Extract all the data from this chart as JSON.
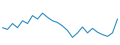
{
  "values": [
    1.0,
    0.5,
    2.2,
    1.0,
    3.0,
    2.2,
    4.5,
    3.5,
    5.2,
    4.0,
    3.0,
    2.5,
    1.5,
    0.2,
    -1.8,
    -0.5,
    1.2,
    -0.5,
    0.8,
    -0.3,
    -1.0,
    -1.5,
    -0.5,
    3.5
  ],
  "line_color": "#2b8cc4",
  "line_width": 0.8,
  "background_color": "#ffffff",
  "ylim": [
    -4.0,
    9.0
  ]
}
